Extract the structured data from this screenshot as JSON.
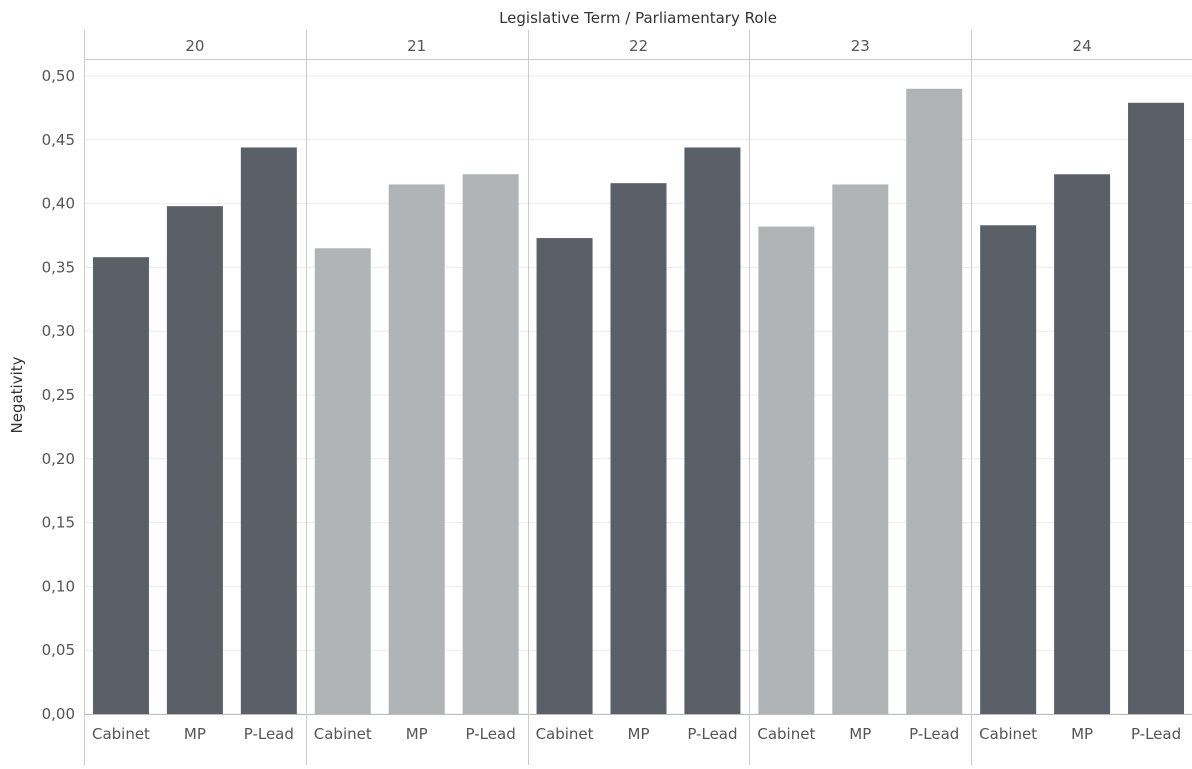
{
  "chart_data": {
    "type": "bar",
    "title": "Legislative Term / Parliamentary Role",
    "xlabel": "",
    "ylabel": "Negativity",
    "ylim": [
      0,
      0.52
    ],
    "yticks": [
      "0,00",
      "0,05",
      "0,10",
      "0,15",
      "0,20",
      "0,25",
      "0,30",
      "0,35",
      "0,40",
      "0,45",
      "0,50"
    ],
    "ytick_values": [
      0,
      0.05,
      0.1,
      0.15,
      0.2,
      0.25,
      0.3,
      0.35,
      0.4,
      0.45,
      0.5
    ],
    "grid": true,
    "categories": [
      "Cabinet",
      "MP",
      "P-Lead"
    ],
    "groups": [
      {
        "term": "20",
        "color": "#5b5f67",
        "values": [
          0.358,
          0.398,
          0.444
        ]
      },
      {
        "term": "21",
        "color": "#b1b4b4",
        "values": [
          0.365,
          0.415,
          0.423
        ]
      },
      {
        "term": "22",
        "color": "#5b5f67",
        "values": [
          0.373,
          0.416,
          0.444
        ]
      },
      {
        "term": "23",
        "color": "#b1b4b4",
        "values": [
          0.382,
          0.415,
          0.49
        ]
      },
      {
        "term": "24",
        "color": "#5b5f67",
        "values": [
          0.383,
          0.423,
          0.479
        ]
      }
    ]
  }
}
